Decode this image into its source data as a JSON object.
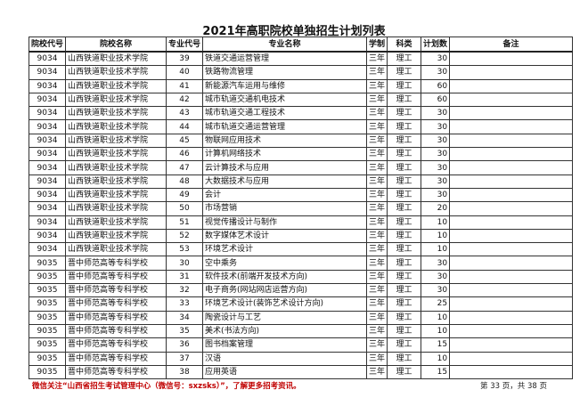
{
  "title": "2021年高职院校单独招生计划列表",
  "columns": [
    "院校代号",
    "院校名称",
    "专业代号",
    "专业名称",
    "学制",
    "科类",
    "计划数",
    "备注"
  ],
  "rows": [
    [
      "9034",
      "山西铁道职业技术学院",
      "39",
      "铁道交通运营管理",
      "三年",
      "理工",
      "30",
      ""
    ],
    [
      "9034",
      "山西铁道职业技术学院",
      "40",
      "铁路物流管理",
      "三年",
      "理工",
      "30",
      ""
    ],
    [
      "9034",
      "山西铁道职业技术学院",
      "41",
      "新能源汽车运用与维修",
      "三年",
      "理工",
      "60",
      ""
    ],
    [
      "9034",
      "山西铁道职业技术学院",
      "42",
      "城市轨道交通机电技术",
      "三年",
      "理工",
      "60",
      ""
    ],
    [
      "9034",
      "山西铁道职业技术学院",
      "43",
      "城市轨道交通工程技术",
      "三年",
      "理工",
      "30",
      ""
    ],
    [
      "9034",
      "山西铁道职业技术学院",
      "44",
      "城市轨道交通运营管理",
      "三年",
      "理工",
      "30",
      ""
    ],
    [
      "9034",
      "山西铁道职业技术学院",
      "45",
      "物联网应用技术",
      "三年",
      "理工",
      "30",
      ""
    ],
    [
      "9034",
      "山西铁道职业技术学院",
      "46",
      "计算机网络技术",
      "三年",
      "理工",
      "30",
      ""
    ],
    [
      "9034",
      "山西铁道职业技术学院",
      "47",
      "云计算技术与应用",
      "三年",
      "理工",
      "30",
      ""
    ],
    [
      "9034",
      "山西铁道职业技术学院",
      "48",
      "大数据技术与应用",
      "三年",
      "理工",
      "30",
      ""
    ],
    [
      "9034",
      "山西铁道职业技术学院",
      "49",
      "会计",
      "三年",
      "理工",
      "30",
      ""
    ],
    [
      "9034",
      "山西铁道职业技术学院",
      "50",
      "市场营销",
      "三年",
      "理工",
      "20",
      ""
    ],
    [
      "9034",
      "山西铁道职业技术学院",
      "51",
      "视觉传播设计与制作",
      "三年",
      "理工",
      "10",
      ""
    ],
    [
      "9034",
      "山西铁道职业技术学院",
      "52",
      "数字媒体艺术设计",
      "三年",
      "理工",
      "10",
      ""
    ],
    [
      "9034",
      "山西铁道职业技术学院",
      "53",
      "环境艺术设计",
      "三年",
      "理工",
      "10",
      ""
    ],
    [
      "9035",
      "晋中师范高等专科学校",
      "30",
      "空中乘务",
      "三年",
      "理工",
      "30",
      ""
    ],
    [
      "9035",
      "晋中师范高等专科学校",
      "31",
      "软件技术(前端开发技术方向)",
      "三年",
      "理工",
      "30",
      ""
    ],
    [
      "9035",
      "晋中师范高等专科学校",
      "32",
      "电子商务(网站网店运营方向)",
      "三年",
      "理工",
      "30",
      ""
    ],
    [
      "9035",
      "晋中师范高等专科学校",
      "33",
      "环境艺术设计(装饰艺术设计方向)",
      "三年",
      "理工",
      "25",
      ""
    ],
    [
      "9035",
      "晋中师范高等专科学校",
      "34",
      "陶瓷设计与工艺",
      "三年",
      "理工",
      "10",
      ""
    ],
    [
      "9035",
      "晋中师范高等专科学校",
      "35",
      "美术(书法方向)",
      "三年",
      "理工",
      "10",
      ""
    ],
    [
      "9035",
      "晋中师范高等专科学校",
      "36",
      "图书档案管理",
      "三年",
      "理工",
      "15",
      ""
    ],
    [
      "9035",
      "晋中师范高等专科学校",
      "37",
      "汉语",
      "三年",
      "理工",
      "10",
      ""
    ],
    [
      "9035",
      "晋中师范高等专科学校",
      "38",
      "应用英语",
      "三年",
      "理工",
      "15",
      ""
    ]
  ],
  "footer": {
    "notice": "微信关注“山西省招生考试管理中心（微信号：sxzsks）”，了解更多招考资讯。",
    "page": "第 33 页，共 38 页",
    "notice_color": "#c00000"
  }
}
